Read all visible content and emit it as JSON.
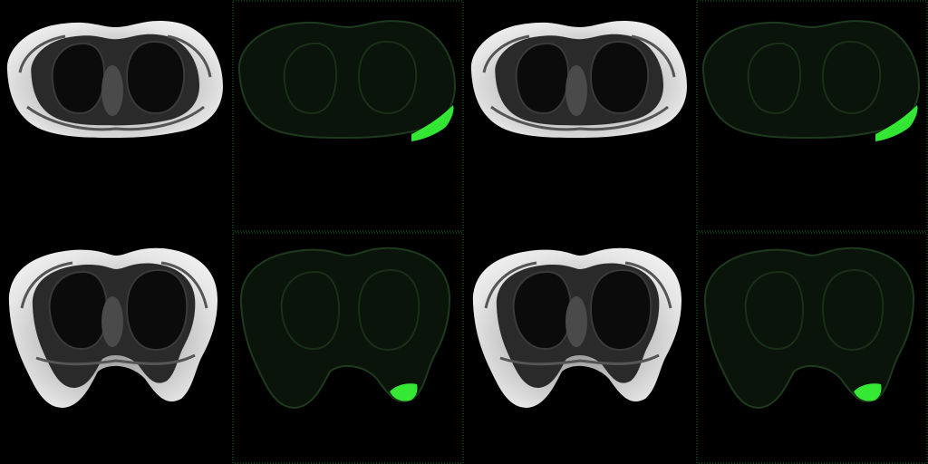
{
  "layout": {
    "rows": 2,
    "cols": 4
  },
  "colors": {
    "background": "#000000",
    "tissue_bright": "#e6e6e6",
    "tissue_mid": "#8a8a8a",
    "tissue_dark": "#1c1c1c",
    "overlay_green": "#39ff39",
    "overlay_dim": "#0d2a0d",
    "frame_green": "#1c7a1c"
  },
  "tiles": [
    {
      "kind": "mri",
      "slice": "upper-thorax"
    },
    {
      "kind": "overlay",
      "slice": "upper-thorax",
      "highlight": "right-lateral-edge"
    },
    {
      "kind": "mri",
      "slice": "upper-thorax"
    },
    {
      "kind": "overlay",
      "slice": "upper-thorax",
      "highlight": "right-lateral-edge"
    },
    {
      "kind": "mri",
      "slice": "lower-thorax-breast"
    },
    {
      "kind": "overlay",
      "slice": "lower-thorax-breast",
      "highlight": "right-breast-tip"
    },
    {
      "kind": "mri",
      "slice": "lower-thorax-breast"
    },
    {
      "kind": "overlay",
      "slice": "lower-thorax-breast",
      "highlight": "right-breast-tip"
    }
  ]
}
